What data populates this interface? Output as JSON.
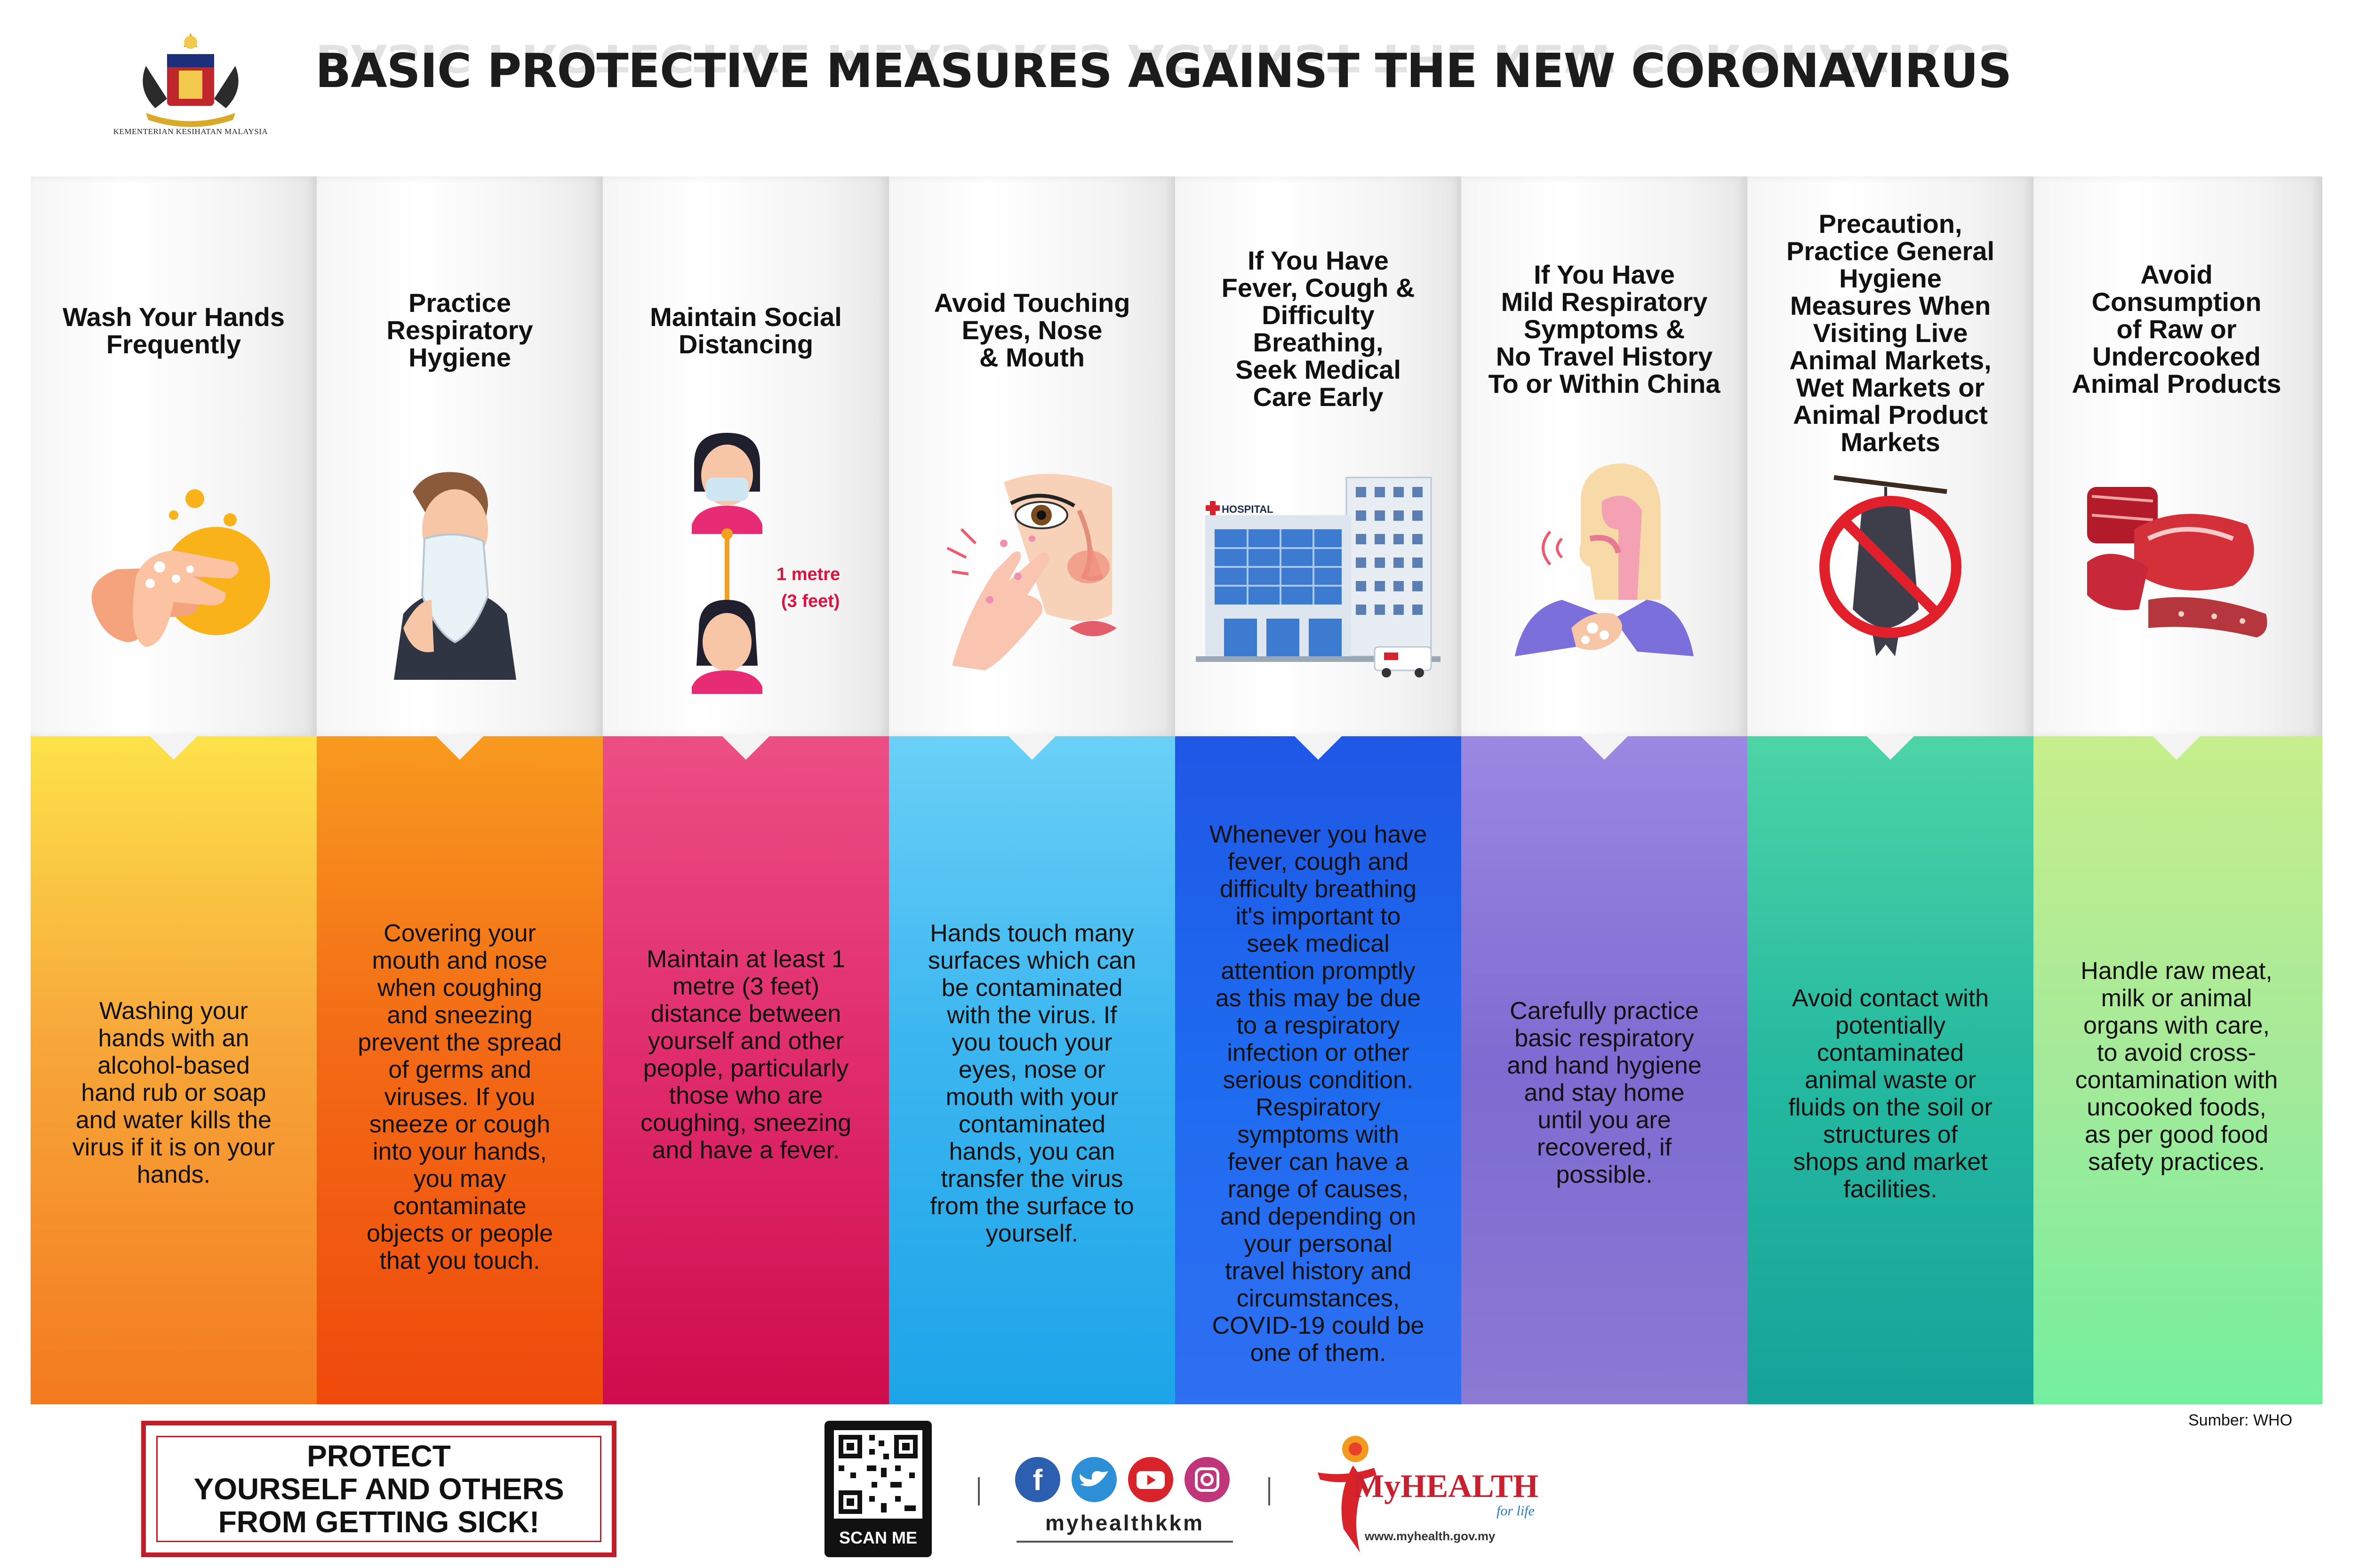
{
  "header": {
    "title": "BASIC PROTECTIVE MEASURES AGAINST THE NEW CORONAVIRUS",
    "ministry": "KEMENTERIAN KESIHATAN MALAYSIA"
  },
  "colors": {
    "col1": [
      "#fde24a",
      "#f7a73a",
      "#f37a1f"
    ],
    "col2": [
      "#f89a1f",
      "#f36b16",
      "#ef4a0c"
    ],
    "col3": [
      "#e53e7a",
      "#e12e6d",
      "#cf0c4d"
    ],
    "col4": [
      "#6ad0f6",
      "#3cb6f0",
      "#1da4e8"
    ],
    "col5": [
      "#1f57e5",
      "#1e6bf0",
      "#2f6ff2"
    ],
    "col6": [
      "#9a88e2",
      "#7d6bd1",
      "#8a7ad3"
    ],
    "col7": [
      "#4dd4a6",
      "#25b9a0",
      "#15a39a"
    ],
    "col8": [
      "#c7ee8b",
      "#a4ea9a",
      "#74ef9e"
    ]
  },
  "columns": [
    {
      "heading": [
        "Wash Your Hands",
        "Frequently"
      ],
      "body": [
        "Washing your",
        "hands with an",
        "alcohol-based",
        "hand rub or soap",
        "and water kills the",
        "virus if it is on your",
        "hands."
      ],
      "icon": "washing-hands-icon"
    },
    {
      "heading": [
        "Practice",
        "Respiratory",
        "Hygiene"
      ],
      "body": [
        "Covering your",
        "mouth and nose",
        "when coughing",
        "and sneezing",
        "prevent the spread",
        "of germs and",
        "viruses. If you",
        "sneeze or cough",
        "into your hands,",
        "you may",
        "contaminate",
        "objects or people",
        "that you touch."
      ],
      "icon": "sneezing-person-icon"
    },
    {
      "heading": [
        "Maintain Social",
        "Distancing"
      ],
      "body": [
        "Maintain at least 1",
        "metre (3 feet)",
        "distance between",
        "yourself and other",
        "people, particularly",
        "those who are",
        "coughing, sneezing",
        "and have a fever."
      ],
      "icon": "social-distance-icon",
      "distance_label": [
        "1 metre",
        "(3 feet)"
      ]
    },
    {
      "heading": [
        "Avoid Touching",
        "Eyes, Nose",
        "& Mouth"
      ],
      "body": [
        "Hands touch many",
        "surfaces which can",
        "be contaminated",
        "with the virus. If",
        "you touch your",
        "eyes, nose or",
        "mouth with your",
        "contaminated",
        "hands, you can",
        "transfer the virus",
        "from the surface to",
        "yourself."
      ],
      "icon": "face-touch-icon"
    },
    {
      "heading": [
        "If You Have",
        "Fever, Cough &",
        "Difficulty",
        "Breathing,",
        "Seek Medical",
        "Care Early"
      ],
      "body": [
        "Whenever you have",
        "fever, cough and",
        "difficulty breathing",
        "it's important to",
        "seek medical",
        "attention promptly",
        "as this may be due",
        "to a respiratory",
        "infection or other",
        "serious condition.",
        "Respiratory",
        "symptoms with",
        "fever can have a",
        "range of causes,",
        "and depending on",
        "your personal",
        "travel history and",
        "circumstances,",
        "COVID-19 could be",
        "one of them."
      ],
      "icon": "hospital-icon",
      "hospital_label": "HOSPITAL"
    },
    {
      "heading": [
        "If You Have",
        "Mild Respiratory",
        "Symptoms &",
        "No Travel History",
        "To or Within China"
      ],
      "body": [
        "Carefully practice",
        "basic respiratory",
        "and hand hygiene",
        "and stay home",
        "until you are",
        "recovered, if",
        "possible."
      ],
      "icon": "respiratory-hygiene-icon"
    },
    {
      "heading": [
        "Precaution,",
        "Practice General",
        "Hygiene",
        "Measures When",
        "Visiting Live",
        "Animal Markets,",
        "Wet Markets or",
        "Animal Product",
        "Markets"
      ],
      "body": [
        "Avoid contact with",
        "potentially",
        "contaminated",
        "animal waste or",
        "fluids on the soil or",
        "structures of",
        "shops and market",
        "facilities."
      ],
      "icon": "no-bat-icon"
    },
    {
      "heading": [
        "Avoid",
        "Consumption",
        "of Raw or",
        "Undercooked",
        "Animal Products"
      ],
      "body": [
        "Handle raw meat,",
        "milk or animal",
        "organs with care,",
        "to avoid cross-",
        "contamination with",
        "uncooked foods,",
        "as per good food",
        "safety practices."
      ],
      "icon": "raw-meat-icon"
    }
  ],
  "footer": {
    "protect": [
      "PROTECT",
      "YOURSELF AND OTHERS",
      "FROM GETTING SICK!"
    ],
    "scan_label": "SCAN ME",
    "social_handle": "myhealthkkm",
    "social_icons": [
      "facebook-icon",
      "twitter-icon",
      "youtube-icon",
      "instagram-icon"
    ],
    "brand_main": "MyHEALTH",
    "brand_sub": "for life",
    "brand_url": "www.myhealth.gov.my",
    "source": "Sumber: WHO"
  }
}
